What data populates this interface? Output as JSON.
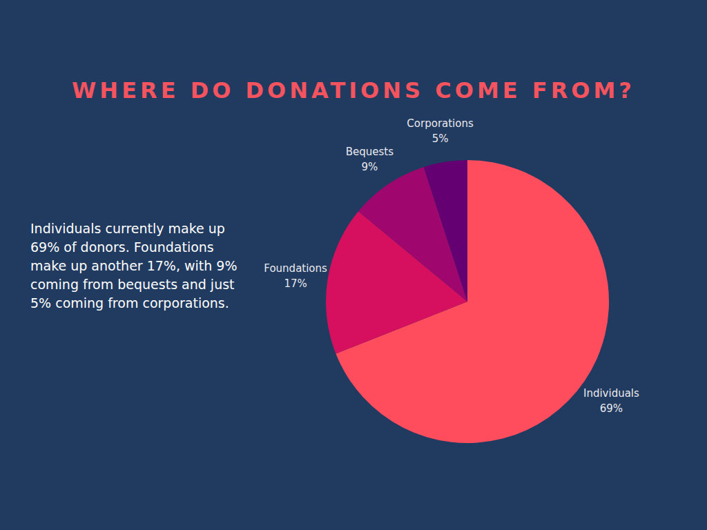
{
  "chart_data": {
    "type": "pie",
    "title": "WHERE DO DONATIONS COME FROM?",
    "annotation": "Individuals currently make up 69% of donors. Foundations make up another 17%, with 9% coming from bequests and just 5% coming from corporations.",
    "categories": [
      "Individuals",
      "Foundations",
      "Bequests",
      "Corporations"
    ],
    "values": [
      69,
      17,
      9,
      5
    ],
    "value_labels": [
      "69%",
      "17%",
      "9%",
      "5%"
    ],
    "colors": [
      "#ff4d5e",
      "#d6105f",
      "#a0076e",
      "#650073"
    ],
    "data_labels": true
  }
}
